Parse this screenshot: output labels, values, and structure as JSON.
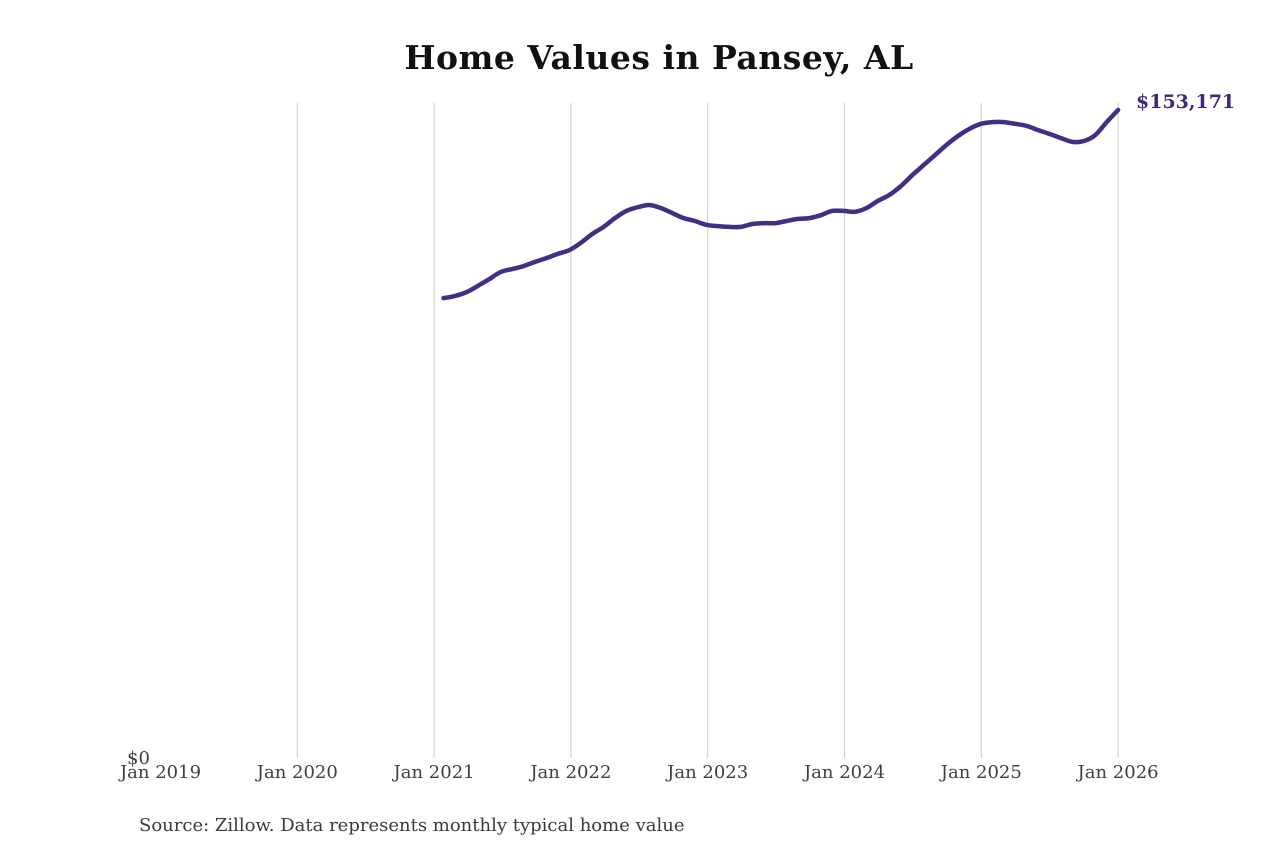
{
  "title": "Home Values in Pansey, AL",
  "end_label": "$153,171",
  "y_zero_label": "$0",
  "source_note": "Source: Zillow. Data represents monthly typical home value",
  "colors": {
    "line": "#3a3285",
    "end_label": "#332d80",
    "grid": "#cccccc",
    "title": "#111111",
    "tick_text": "#3f3f3f",
    "source_text": "#3a3a3a",
    "background": "#ffffff"
  },
  "chart_data": {
    "type": "line",
    "title": "Home Values in Pansey, AL",
    "series_name": "Monthly typical home value (USD)",
    "unit": "USD",
    "grid": "vertical-yearly",
    "legend": "none",
    "xlabel": "",
    "ylabel": "",
    "ylim": [
      0,
      154800
    ],
    "final_value": 153171,
    "final_value_label": "$153,171",
    "xticks": [
      "Jan 2019",
      "Jan 2020",
      "Jan 2021",
      "Jan 2022",
      "Jan 2023",
      "Jan 2024",
      "Jan 2025",
      "Jan 2026"
    ],
    "x": [
      "2021-02",
      "2021-03",
      "2021-04",
      "2021-05",
      "2021-06",
      "2021-07",
      "2021-08",
      "2021-09",
      "2021-10",
      "2021-11",
      "2021-12",
      "2022-01",
      "2022-02",
      "2022-03",
      "2022-04",
      "2022-05",
      "2022-06",
      "2022-07",
      "2022-08",
      "2022-09",
      "2022-10",
      "2022-11",
      "2022-12",
      "2023-01",
      "2023-02",
      "2023-03",
      "2023-04",
      "2023-05",
      "2023-06",
      "2023-07",
      "2023-08",
      "2023-09",
      "2023-10",
      "2023-11",
      "2023-12",
      "2024-01",
      "2024-02",
      "2024-03",
      "2024-04",
      "2024-05",
      "2024-06",
      "2024-07",
      "2024-08",
      "2024-09",
      "2024-10",
      "2024-11",
      "2024-12",
      "2025-01",
      "2025-02",
      "2025-03",
      "2025-04",
      "2025-05",
      "2025-06",
      "2025-07",
      "2025-08",
      "2025-09",
      "2025-10",
      "2025-11",
      "2025-12",
      "2026-01"
    ],
    "values": [
      108500,
      109000,
      109900,
      111400,
      113000,
      114700,
      115400,
      116100,
      117100,
      118000,
      119000,
      119900,
      121600,
      123700,
      125400,
      127500,
      129200,
      130100,
      130600,
      129900,
      128700,
      127500,
      126800,
      125900,
      125600,
      125400,
      125400,
      126100,
      126300,
      126300,
      126800,
      127300,
      127500,
      128200,
      129200,
      129200,
      129000,
      129900,
      131600,
      133000,
      135100,
      137700,
      140100,
      142500,
      144900,
      147000,
      148700,
      149900,
      150300,
      150300,
      149900,
      149400,
      148400,
      147500,
      146500,
      145600,
      145800,
      147200,
      150300,
      153171
    ]
  }
}
